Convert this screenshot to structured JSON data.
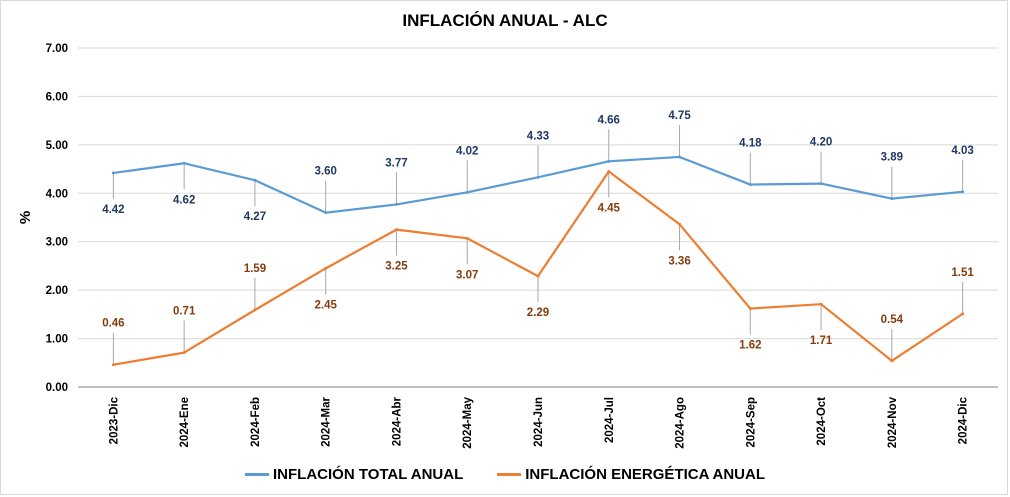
{
  "chart_data": {
    "type": "line",
    "title": "INFLACIÓN ANUAL - ALC",
    "ylabel": "%",
    "xlabel": "",
    "ylim": [
      0,
      7
    ],
    "yticks": [
      "0.00",
      "1.00",
      "2.00",
      "3.00",
      "4.00",
      "5.00",
      "6.00",
      "7.00"
    ],
    "grid": true,
    "legend_position": "bottom",
    "categories": [
      "2023-Dic",
      "2024-Ene",
      "2024-Feb",
      "2024-Mar",
      "2024-Abr",
      "2024-May",
      "2024-Jun",
      "2024-Jul",
      "2024-Ago",
      "2024-Sep",
      "2024-Oct",
      "2024-Nov",
      "2024-Dic"
    ],
    "series": [
      {
        "name": "INFLACIÓN TOTAL ANUAL",
        "color": "#5b9bd5",
        "label_color": "#1f3864",
        "values": [
          4.42,
          4.62,
          4.27,
          3.6,
          3.77,
          4.02,
          4.33,
          4.66,
          4.75,
          4.18,
          4.2,
          3.89,
          4.03
        ],
        "labels": [
          "4.42",
          "4.62",
          "4.27",
          "3.60",
          "3.77",
          "4.02",
          "4.33",
          "4.66",
          "4.75",
          "4.18",
          "4.20",
          "3.89",
          "4.03"
        ],
        "label_side": [
          "below",
          "below",
          "below",
          "above",
          "above",
          "above",
          "above",
          "above",
          "above",
          "above",
          "above",
          "above",
          "above"
        ]
      },
      {
        "name": "INFLACIÓN ENERGÉTICA ANUAL",
        "color": "#ed7d31",
        "label_color": "#843c0c",
        "values": [
          0.46,
          0.71,
          1.59,
          2.45,
          3.25,
          3.07,
          2.29,
          4.45,
          3.36,
          1.62,
          1.71,
          0.54,
          1.51
        ],
        "labels": [
          "0.46",
          "0.71",
          "1.59",
          "2.45",
          "3.25",
          "3.07",
          "2.29",
          "4.45",
          "3.36",
          "1.62",
          "1.71",
          "0.54",
          "1.51"
        ],
        "label_side": [
          "above",
          "above",
          "above",
          "below",
          "below",
          "below",
          "below",
          "below",
          "below",
          "below",
          "below",
          "above",
          "above"
        ]
      }
    ]
  }
}
